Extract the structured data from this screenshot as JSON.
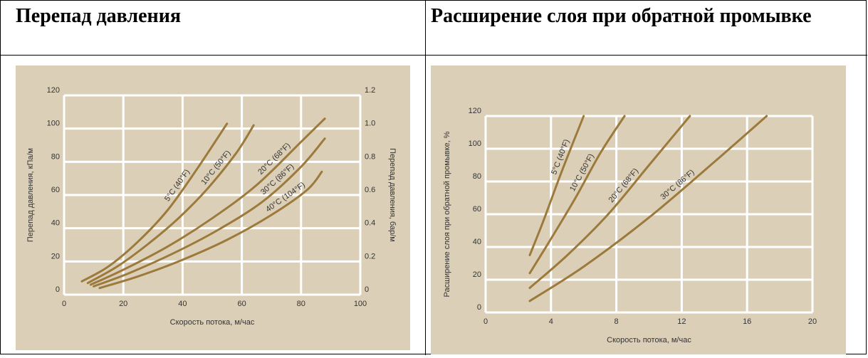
{
  "headers": {
    "left": "Перепад давления",
    "right": "Расширение слоя при обратной промывке"
  },
  "colors": {
    "background": "#dccfb8",
    "grid": "#ffffff",
    "curve": "#9c7a3c",
    "text": "#333333"
  },
  "chart_data": [
    {
      "type": "line",
      "xlabel": "Скорость потока, м/час",
      "ylabel": "Перепад давления, кПа/м",
      "y2label": "Перепад давления, бар/м",
      "xlim": [
        0,
        100
      ],
      "ylim": [
        0,
        120
      ],
      "y2lim": [
        0,
        1.2
      ],
      "x_ticks": [
        "0",
        "20",
        "40",
        "60",
        "80",
        "100"
      ],
      "y_ticks": [
        "0",
        "20",
        "40",
        "60",
        "80",
        "100",
        "120"
      ],
      "y2_ticks": [
        "0",
        "0.2",
        "0.4",
        "0.6",
        "0.8",
        "1.0",
        "1.2"
      ],
      "grid": true,
      "series": [
        {
          "name": "5°C (40°F)",
          "x": [
            6,
            15,
            25,
            35,
            45,
            55
          ],
          "y": [
            8,
            17,
            32,
            51,
            76,
            103
          ]
        },
        {
          "name": "10°C (50°F)",
          "x": [
            8,
            18,
            28,
            38,
            48,
            58,
            64
          ],
          "y": [
            7,
            17,
            30,
            45,
            63,
            85,
            102
          ]
        },
        {
          "name": "20°C (68°F)",
          "x": [
            9,
            20,
            35,
            50,
            65,
            80,
            88
          ],
          "y": [
            6,
            15,
            29,
            46,
            66,
            92,
            106
          ]
        },
        {
          "name": "30°C (86°F)",
          "x": [
            10,
            22,
            37,
            52,
            67,
            80,
            88
          ],
          "y": [
            5,
            13,
            25,
            39,
            56,
            77,
            94
          ]
        },
        {
          "name": "40°C (104°F)",
          "x": [
            12,
            25,
            40,
            55,
            70,
            82,
            87
          ],
          "y": [
            4,
            11,
            21,
            33,
            48,
            63,
            74
          ]
        }
      ]
    },
    {
      "type": "line",
      "xlabel": "Скорость потока, м/час",
      "ylabel": "Расширение слоя при обратной промывке, %",
      "xlim": [
        0,
        20
      ],
      "ylim": [
        0,
        120
      ],
      "x_ticks": [
        "0",
        "4",
        "8",
        "12",
        "16",
        "20"
      ],
      "y_ticks": [
        "0",
        "20",
        "40",
        "60",
        "80",
        "100",
        "120"
      ],
      "grid": true,
      "series": [
        {
          "name": "5°C (40°F)",
          "x": [
            2.7,
            3.5,
            4.5,
            5.4,
            6.0
          ],
          "y": [
            35,
            55,
            82,
            105,
            120
          ]
        },
        {
          "name": "10°C (50°F)",
          "x": [
            2.7,
            4.0,
            5.5,
            7.0,
            8.5
          ],
          "y": [
            24,
            45,
            70,
            97,
            120
          ]
        },
        {
          "name": "20°C (68°F)",
          "x": [
            2.7,
            5.0,
            7.5,
            10.0,
            12.5
          ],
          "y": [
            15,
            35,
            60,
            90,
            120
          ]
        },
        {
          "name": "30°C (86°F)",
          "x": [
            2.7,
            6.0,
            10.0,
            14.0,
            17.2
          ],
          "y": [
            7,
            28,
            58,
            92,
            120
          ]
        }
      ]
    }
  ]
}
